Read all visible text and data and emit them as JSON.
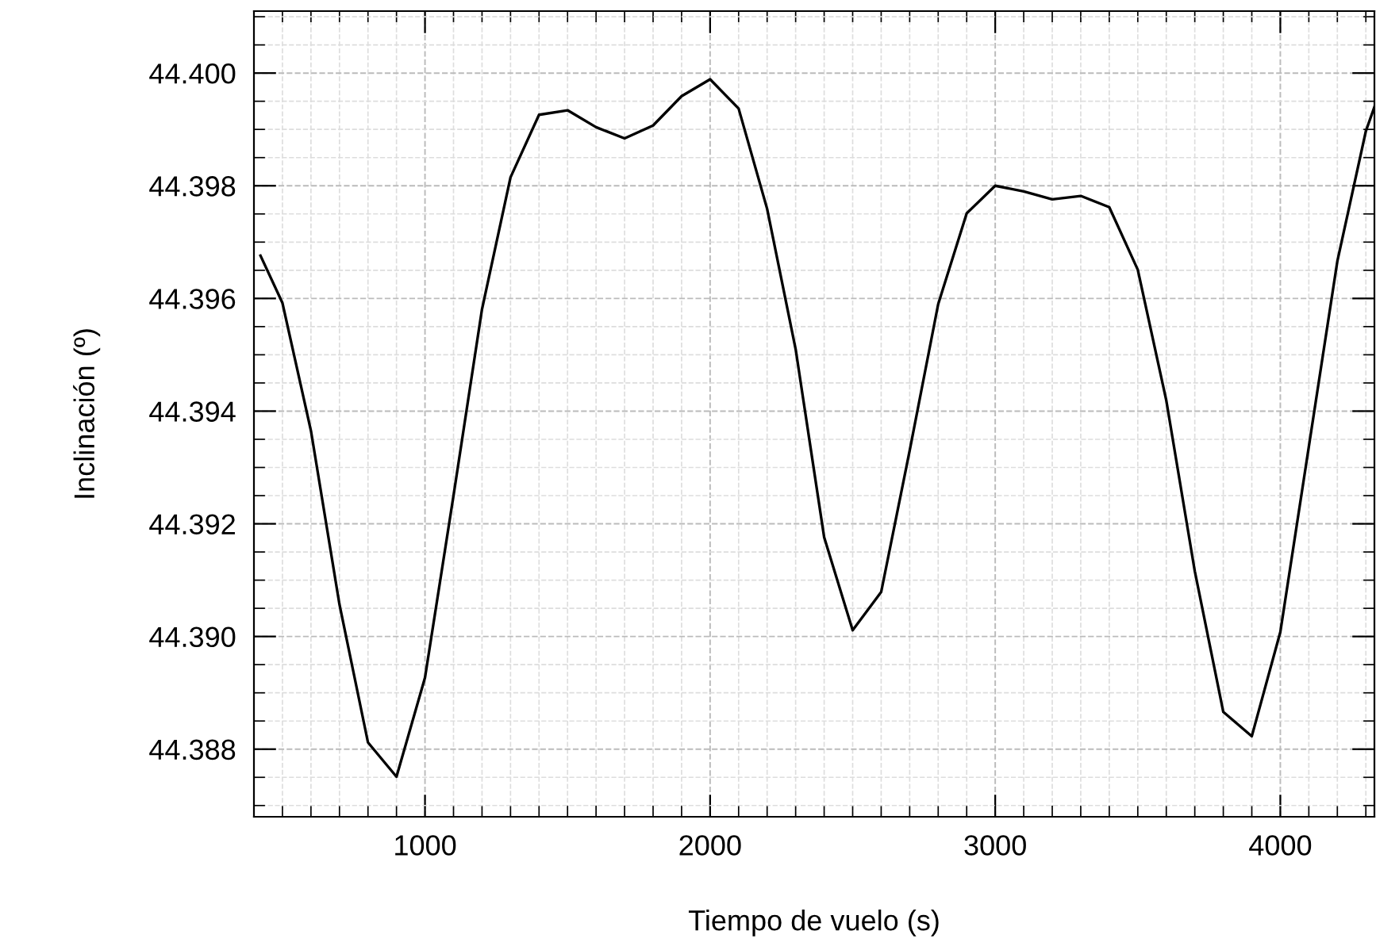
{
  "chart_data": {
    "type": "line",
    "xlabel": "Tiempo de vuelo (s)",
    "ylabel": "Inclinación (º)",
    "x": [
      423,
      500,
      600,
      700,
      800,
      900,
      1000,
      1100,
      1200,
      1300,
      1400,
      1500,
      1600,
      1700,
      1800,
      1900,
      2000,
      2100,
      2200,
      2300,
      2400,
      2500,
      2600,
      2700,
      2800,
      2900,
      3000,
      3100,
      3200,
      3300,
      3400,
      3500,
      3600,
      3700,
      3800,
      3900,
      4000,
      4100,
      4200,
      4300,
      4330
    ],
    "series": [
      {
        "color": "#000000",
        "values": [
          44.39676,
          44.39592,
          44.39365,
          44.39057,
          44.38812,
          44.38751,
          44.38927,
          44.3925,
          44.39581,
          44.39815,
          44.39926,
          44.39934,
          44.39904,
          44.39884,
          44.39907,
          44.39959,
          44.39989,
          44.39937,
          44.39759,
          44.3951,
          44.39176,
          44.39011,
          44.39079,
          44.3933,
          44.3959,
          44.39751,
          44.398,
          44.3979,
          44.39776,
          44.39782,
          44.39762,
          44.39651,
          44.39419,
          44.39116,
          44.38866,
          44.38823,
          44.39008,
          44.39337,
          44.39666,
          44.39897,
          44.3994
        ]
      }
    ],
    "xlim": [
      400,
      4330
    ],
    "xticks": [
      1000,
      2000,
      3000,
      4000
    ],
    "ylim": [
      44.3868,
      44.4011
    ],
    "yticks": [
      {
        "value": 44.388,
        "label": "44.388"
      },
      {
        "value": 44.39,
        "label": "44.390"
      },
      {
        "value": 44.392,
        "label": "44.392"
      },
      {
        "value": 44.394,
        "label": "44.394"
      },
      {
        "value": 44.396,
        "label": "44.396"
      },
      {
        "value": 44.398,
        "label": "44.398"
      },
      {
        "value": 44.4,
        "label": "44.400"
      }
    ],
    "grid": true,
    "marker": "none",
    "line_style": "solid",
    "legend": false
  }
}
